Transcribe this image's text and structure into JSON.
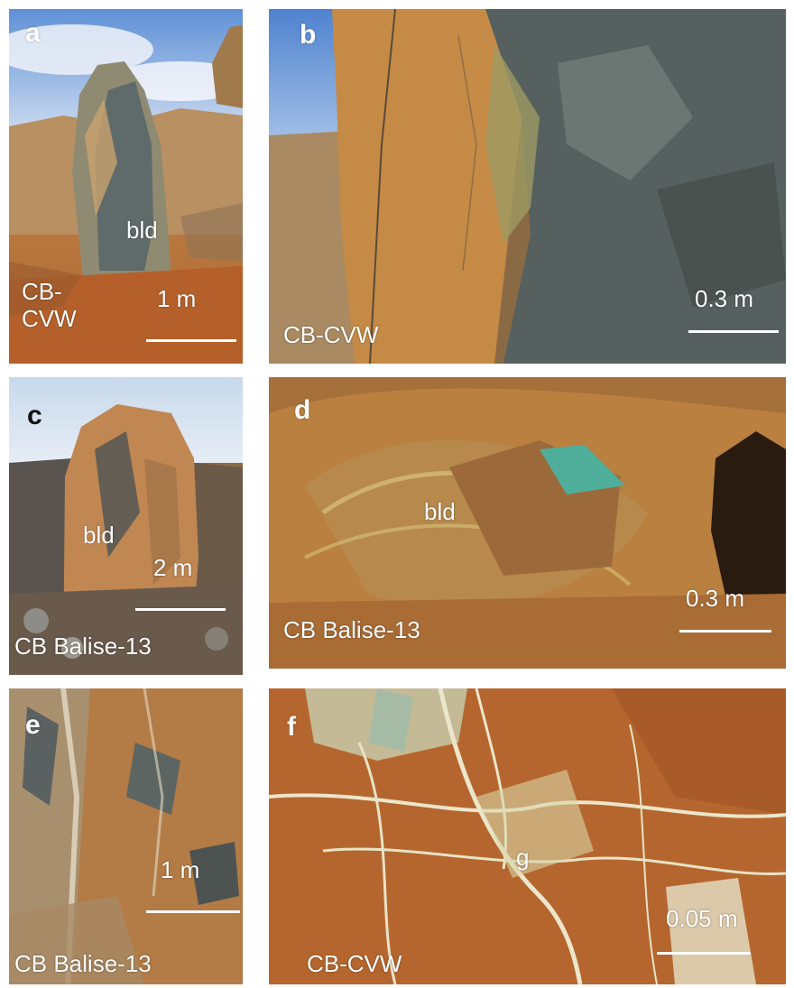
{
  "panels": {
    "a": {
      "letter": "a",
      "site_line1": "CB-",
      "site_line2": "CVW",
      "tag": "bld",
      "scale": "1 m"
    },
    "b": {
      "letter": "b",
      "site": "CB-CVW",
      "scale": "0.3 m"
    },
    "c": {
      "letter": "c",
      "site": "CB Balise-13",
      "tag": "bld",
      "scale": "2 m"
    },
    "d": {
      "letter": "d",
      "site": "CB Balise-13",
      "tag": "bld",
      "scale": "0.3 m"
    },
    "e": {
      "letter": "e",
      "site": "CB Balise-13",
      "scale": "1 m"
    },
    "f": {
      "letter": "f",
      "site": "CB-CVW",
      "tag": "g",
      "scale": "0.05 m"
    }
  },
  "colors": {
    "sky": "#7fa9df",
    "ochre": "#b9803f",
    "rust": "#b5602a",
    "grey_rock": "#5f6460",
    "pale_vein": "#e7e3c6",
    "malachite": "#4fae9a"
  }
}
